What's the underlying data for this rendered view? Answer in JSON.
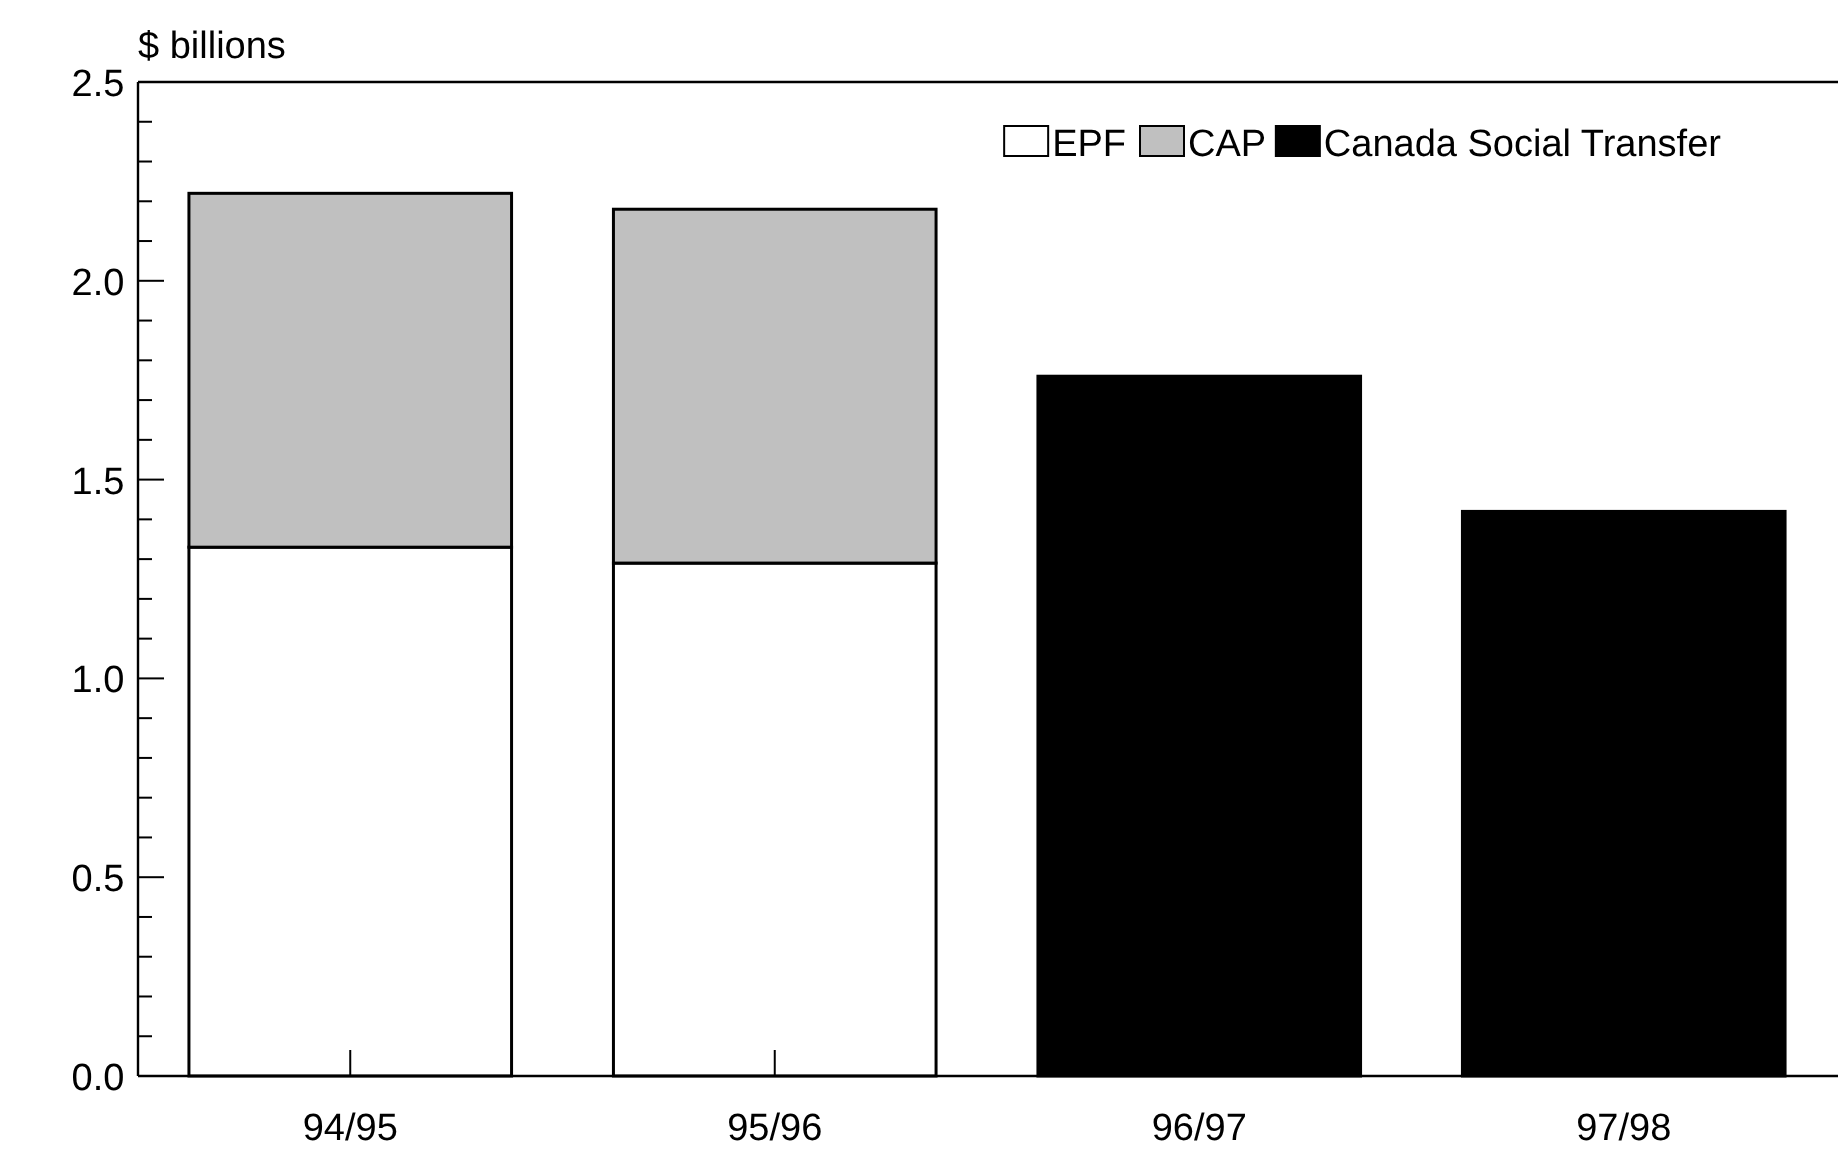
{
  "chart_data": {
    "type": "bar",
    "stacked": true,
    "ylabel": "$ billions",
    "categories": [
      "94/95",
      "95/96",
      "96/97",
      "97/98"
    ],
    "series": [
      {
        "name": "EPF",
        "color": "#ffffff",
        "values": [
          1.33,
          1.29,
          null,
          null
        ]
      },
      {
        "name": "CAP",
        "color": "#c0c0c0",
        "values": [
          0.89,
          0.89,
          null,
          null
        ]
      },
      {
        "name": "Canada Social Transfer",
        "color": "#000000",
        "values": [
          null,
          null,
          1.76,
          1.42
        ]
      }
    ],
    "ylim": [
      0,
      2.5
    ],
    "yticks": [
      {
        "value": 0,
        "label": "0.0"
      },
      {
        "value": 0.1,
        "label": null
      },
      {
        "value": 0.2,
        "label": null
      },
      {
        "value": 0.3,
        "label": null
      },
      {
        "value": 0.4,
        "label": null
      },
      {
        "value": 0.5,
        "label": "0.5"
      },
      {
        "value": 0.6,
        "label": null
      },
      {
        "value": 0.7,
        "label": null
      },
      {
        "value": 0.8,
        "label": null
      },
      {
        "value": 0.9,
        "label": null
      },
      {
        "value": 1,
        "label": "1.0"
      },
      {
        "value": 1.1,
        "label": null
      },
      {
        "value": 1.2,
        "label": null
      },
      {
        "value": 1.3,
        "label": null
      },
      {
        "value": 1.4,
        "label": null
      },
      {
        "value": 1.5,
        "label": "1.5"
      },
      {
        "value": 1.6,
        "label": null
      },
      {
        "value": 1.7,
        "label": null
      },
      {
        "value": 1.8,
        "label": null
      },
      {
        "value": 1.9,
        "label": null
      },
      {
        "value": 2,
        "label": "2.0"
      },
      {
        "value": 2.1,
        "label": null
      },
      {
        "value": 2.2,
        "label": null
      },
      {
        "value": 2.3,
        "label": null
      },
      {
        "value": 2.4,
        "label": null
      },
      {
        "value": 2.5,
        "label": "2.5"
      }
    ],
    "grid": false,
    "legend": "top right"
  }
}
